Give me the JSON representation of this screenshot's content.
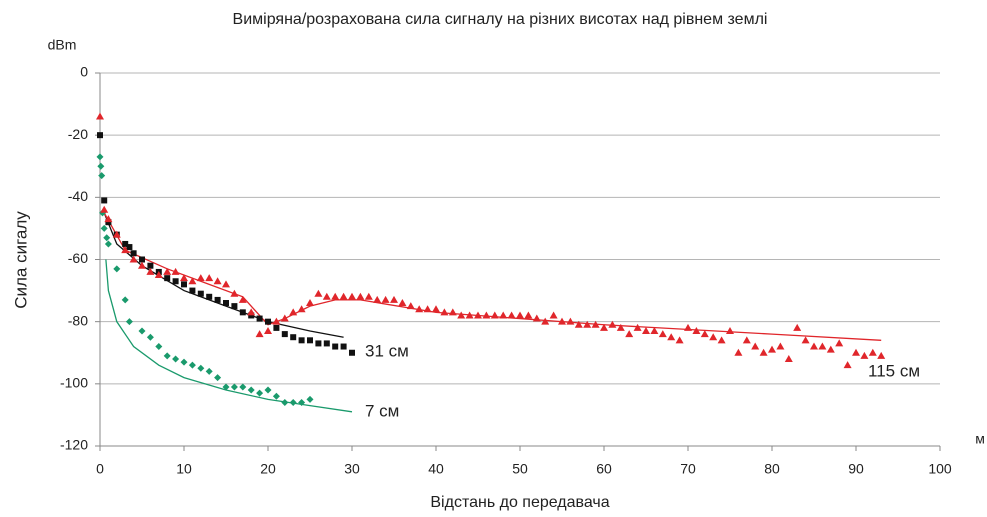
{
  "chart_data": {
    "type": "scatter",
    "title": "Виміряна/розрахована сила сигналу на різних висотах над рівнем землі",
    "y_unit": "dBm",
    "x_unit": "м",
    "y_label": "Сила сигалу",
    "x_label": "Відстань до передавача",
    "xlim": [
      0,
      100
    ],
    "xticks": [
      0,
      10,
      20,
      30,
      40,
      50,
      60,
      70,
      80,
      90,
      100
    ],
    "ylim": [
      -120,
      0
    ],
    "yticks": [
      -120,
      -100,
      -80,
      -60,
      -40,
      -20,
      0
    ],
    "grid": true,
    "series": [
      {
        "name": "7 см",
        "color": "#1a9a6c",
        "marker": "diamond",
        "x": [
          0,
          0.1,
          0.2,
          0.3,
          0.5,
          0.8,
          1,
          2,
          3,
          3.5,
          5,
          6,
          7,
          8,
          9,
          10,
          11,
          12,
          13,
          14,
          15,
          16,
          17,
          18,
          19,
          20,
          21,
          22,
          23,
          24,
          25
        ],
        "values": [
          -27,
          -30,
          -33,
          -45,
          -50,
          -53,
          -55,
          -63,
          -73,
          -80,
          -83,
          -85,
          -88,
          -91,
          -92,
          -93,
          -94,
          -95,
          -96,
          -98,
          -101,
          -101,
          -101,
          -102,
          -103,
          -102,
          -104,
          -106,
          -106,
          -106,
          -105
        ],
        "fit_x": [
          0.7,
          1,
          2,
          4,
          7,
          10,
          15,
          20,
          25,
          30
        ],
        "fit_values": [
          -60,
          -70,
          -80,
          -88,
          -94,
          -98,
          -102,
          -105,
          -107,
          -109
        ]
      },
      {
        "name": "31 см",
        "color": "#111111",
        "marker": "square",
        "x": [
          0,
          0.5,
          1,
          2,
          3,
          3.5,
          4,
          5,
          6,
          7,
          8,
          9,
          10,
          11,
          12,
          13,
          14,
          15,
          16,
          17,
          18,
          19,
          20,
          21,
          22,
          23,
          24,
          25,
          26,
          27,
          28,
          29,
          30
        ],
        "values": [
          -20,
          -41,
          -48,
          -52,
          -55,
          -56,
          -58,
          -60,
          -62,
          -64,
          -66,
          -67,
          -68,
          -70,
          -71,
          -72,
          -73,
          -74,
          -75,
          -77,
          -78,
          -79,
          -80,
          -82,
          -84,
          -85,
          -86,
          -86,
          -87,
          -87,
          -88,
          -88,
          -90
        ],
        "fit_x": [
          0.5,
          2,
          5,
          10,
          15,
          20,
          25,
          29
        ],
        "fit_values": [
          -45,
          -55,
          -62,
          -70,
          -75,
          -80,
          -83,
          -85
        ]
      },
      {
        "name": "115 см",
        "color": "#e0262b",
        "marker": "triangle",
        "x": [
          0,
          0.5,
          1,
          2,
          3,
          4,
          5,
          6,
          7,
          8,
          9,
          10,
          11,
          12,
          13,
          14,
          15,
          16,
          17,
          18,
          19,
          20,
          21,
          22,
          23,
          24,
          25,
          26,
          27,
          28,
          29,
          30,
          31,
          32,
          33,
          34,
          35,
          36,
          37,
          38,
          39,
          40,
          41,
          42,
          43,
          44,
          45,
          46,
          47,
          48,
          49,
          50,
          51,
          52,
          53,
          54,
          55,
          56,
          57,
          58,
          59,
          60,
          61,
          62,
          63,
          64,
          65,
          66,
          67,
          68,
          69,
          70,
          71,
          72,
          73,
          74,
          75,
          76,
          77,
          78,
          79,
          80,
          81,
          82,
          83,
          84,
          85,
          86,
          87,
          88,
          89,
          90,
          91,
          92,
          93
        ],
        "values": [
          -14,
          -44,
          -47,
          -52,
          -57,
          -60,
          -62,
          -64,
          -65,
          -64,
          -64,
          -66,
          -67,
          -66,
          -66,
          -67,
          -68,
          -71,
          -73,
          -77,
          -84,
          -83,
          -80,
          -79,
          -77,
          -76,
          -74,
          -71,
          -72,
          -72,
          -72,
          -72,
          -72,
          -72,
          -73,
          -73,
          -73,
          -74,
          -75,
          -76,
          -76,
          -76,
          -77,
          -77,
          -78,
          -78,
          -78,
          -78,
          -78,
          -78,
          -78,
          -78,
          -78,
          -79,
          -80,
          -78,
          -80,
          -80,
          -81,
          -81,
          -81,
          -82,
          -81,
          -82,
          -84,
          -82,
          -83,
          -83,
          -84,
          -85,
          -86,
          -82,
          -83,
          -84,
          -85,
          -86,
          -83,
          -90,
          -86,
          -88,
          -90,
          -89,
          -88,
          -92,
          -82,
          -86,
          -88,
          -88,
          -89,
          -87,
          -94,
          -90,
          -91,
          -90,
          -91
        ],
        "fit_x": [
          0.5,
          3,
          8,
          13,
          17,
          19,
          20,
          22,
          25,
          28,
          31,
          40,
          60,
          80,
          93
        ],
        "fit_values": [
          -45,
          -57,
          -63,
          -68,
          -72,
          -78,
          -81,
          -79,
          -75,
          -73,
          -73,
          -77,
          -81,
          -84,
          -86
        ]
      }
    ]
  }
}
